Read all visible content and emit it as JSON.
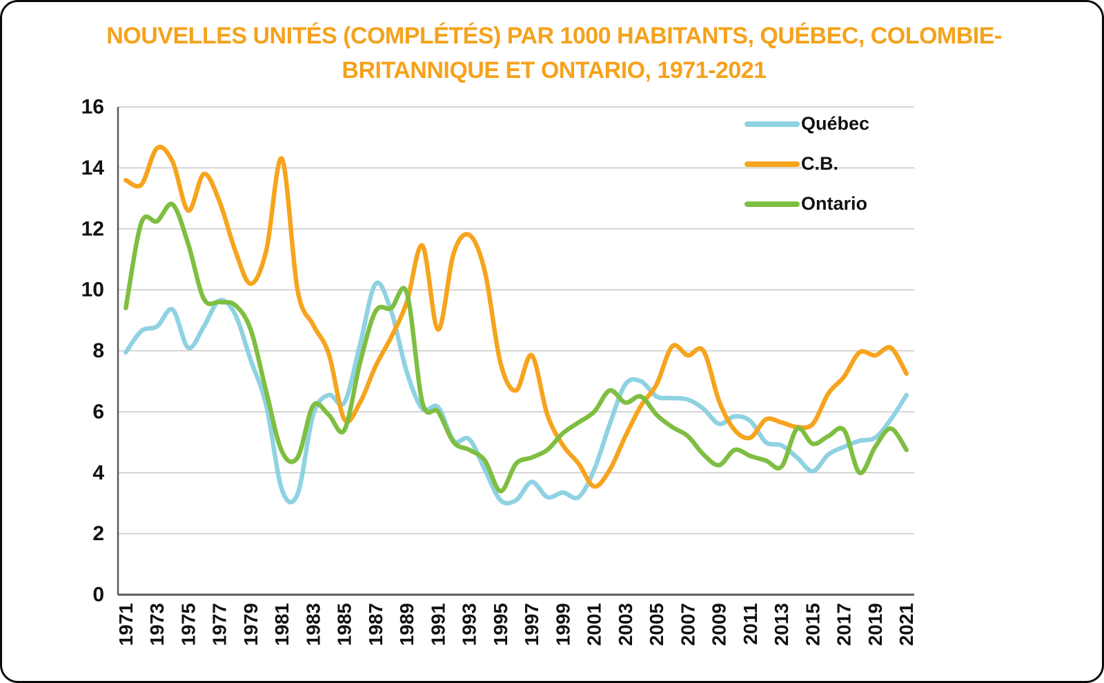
{
  "title": {
    "line1": "NOUVELLES UNITÉS (COMPLÉTÉS) PAR 1000 HABITANTS, QUÉBEC, COLOMBIE-",
    "line2": "BRITANNIQUE ET ONTARIO, 1971-2021"
  },
  "colors": {
    "title_accent": "#F5A21C",
    "grid": "#C8C8C8",
    "axis": "#5A5A5A",
    "tick_text": "#111111",
    "background": "#FFFFFF"
  },
  "legend": {
    "position": "top-right",
    "items": [
      {
        "label": "Québec"
      },
      {
        "label": "C.B."
      },
      {
        "label": "Ontario"
      }
    ]
  },
  "chart_data": {
    "type": "line",
    "title": "NOUVELLES UNITÉS (COMPLÉTÉS) PAR 1000 HABITANTS, QUÉBEC, COLOMBIE-BRITANNIQUE ET ONTARIO, 1971-2021",
    "xlabel": "",
    "ylabel": "",
    "ylim": [
      0,
      16
    ],
    "ytick_step": 2,
    "grid": "horizontal",
    "legend_position": "top-right",
    "smoothing": "spline",
    "x": [
      1971,
      1972,
      1973,
      1974,
      1975,
      1976,
      1977,
      1978,
      1979,
      1980,
      1981,
      1982,
      1983,
      1984,
      1985,
      1986,
      1987,
      1988,
      1989,
      1990,
      1991,
      1992,
      1993,
      1994,
      1995,
      1996,
      1997,
      1998,
      1999,
      2000,
      2001,
      2002,
      2003,
      2004,
      2005,
      2006,
      2007,
      2008,
      2009,
      2010,
      2011,
      2012,
      2013,
      2014,
      2015,
      2016,
      2017,
      2018,
      2019,
      2020,
      2021
    ],
    "xtick_labels": [
      "1971",
      "1973",
      "1975",
      "1977",
      "1979",
      "1981",
      "1983",
      "1985",
      "1987",
      "1989",
      "1991",
      "1993",
      "1995",
      "1997",
      "1999",
      "2001",
      "2003",
      "2005",
      "2007",
      "2009",
      "2011",
      "2013",
      "2015",
      "2017",
      "2019",
      "2021"
    ],
    "series": [
      {
        "name": "Québec",
        "color": "#8FD2E2",
        "values": [
          7.95,
          8.65,
          8.8,
          9.35,
          8.1,
          8.8,
          9.65,
          9.2,
          7.7,
          6.2,
          3.45,
          3.3,
          5.9,
          6.55,
          6.3,
          8.2,
          10.2,
          9.3,
          7.3,
          6.1,
          6.15,
          5.05,
          5.1,
          4.1,
          3.1,
          3.1,
          3.7,
          3.2,
          3.35,
          3.2,
          4.1,
          5.6,
          6.9,
          7.0,
          6.5,
          6.45,
          6.4,
          6.1,
          5.6,
          5.85,
          5.7,
          5.0,
          4.9,
          4.5,
          4.05,
          4.6,
          4.85,
          5.05,
          5.15,
          5.75,
          6.55
        ]
      },
      {
        "name": "C.B.",
        "color": "#F6A41E",
        "values": [
          13.6,
          13.45,
          14.65,
          14.2,
          12.6,
          13.8,
          12.9,
          11.3,
          10.2,
          11.3,
          14.3,
          10.0,
          8.85,
          7.9,
          5.75,
          6.3,
          7.5,
          8.45,
          9.6,
          11.45,
          8.7,
          11.2,
          11.8,
          10.6,
          7.6,
          6.7,
          7.85,
          5.9,
          4.9,
          4.3,
          3.55,
          4.1,
          5.2,
          6.2,
          6.9,
          8.15,
          7.85,
          8.0,
          6.35,
          5.4,
          5.15,
          5.75,
          5.65,
          5.5,
          5.6,
          6.6,
          7.15,
          7.95,
          7.85,
          8.1,
          7.25
        ]
      },
      {
        "name": "Ontario",
        "color": "#7EBE41",
        "values": [
          9.4,
          12.2,
          12.25,
          12.8,
          11.5,
          9.7,
          9.6,
          9.5,
          8.7,
          6.65,
          4.7,
          4.5,
          6.2,
          5.9,
          5.4,
          7.6,
          9.3,
          9.4,
          9.9,
          6.3,
          6.0,
          5.0,
          4.75,
          4.4,
          3.4,
          4.3,
          4.5,
          4.75,
          5.3,
          5.65,
          6.0,
          6.7,
          6.3,
          6.5,
          5.9,
          5.5,
          5.2,
          4.6,
          4.25,
          4.75,
          4.55,
          4.4,
          4.2,
          5.45,
          4.95,
          5.2,
          5.4,
          4.0,
          4.85,
          5.45,
          4.75
        ]
      }
    ]
  }
}
